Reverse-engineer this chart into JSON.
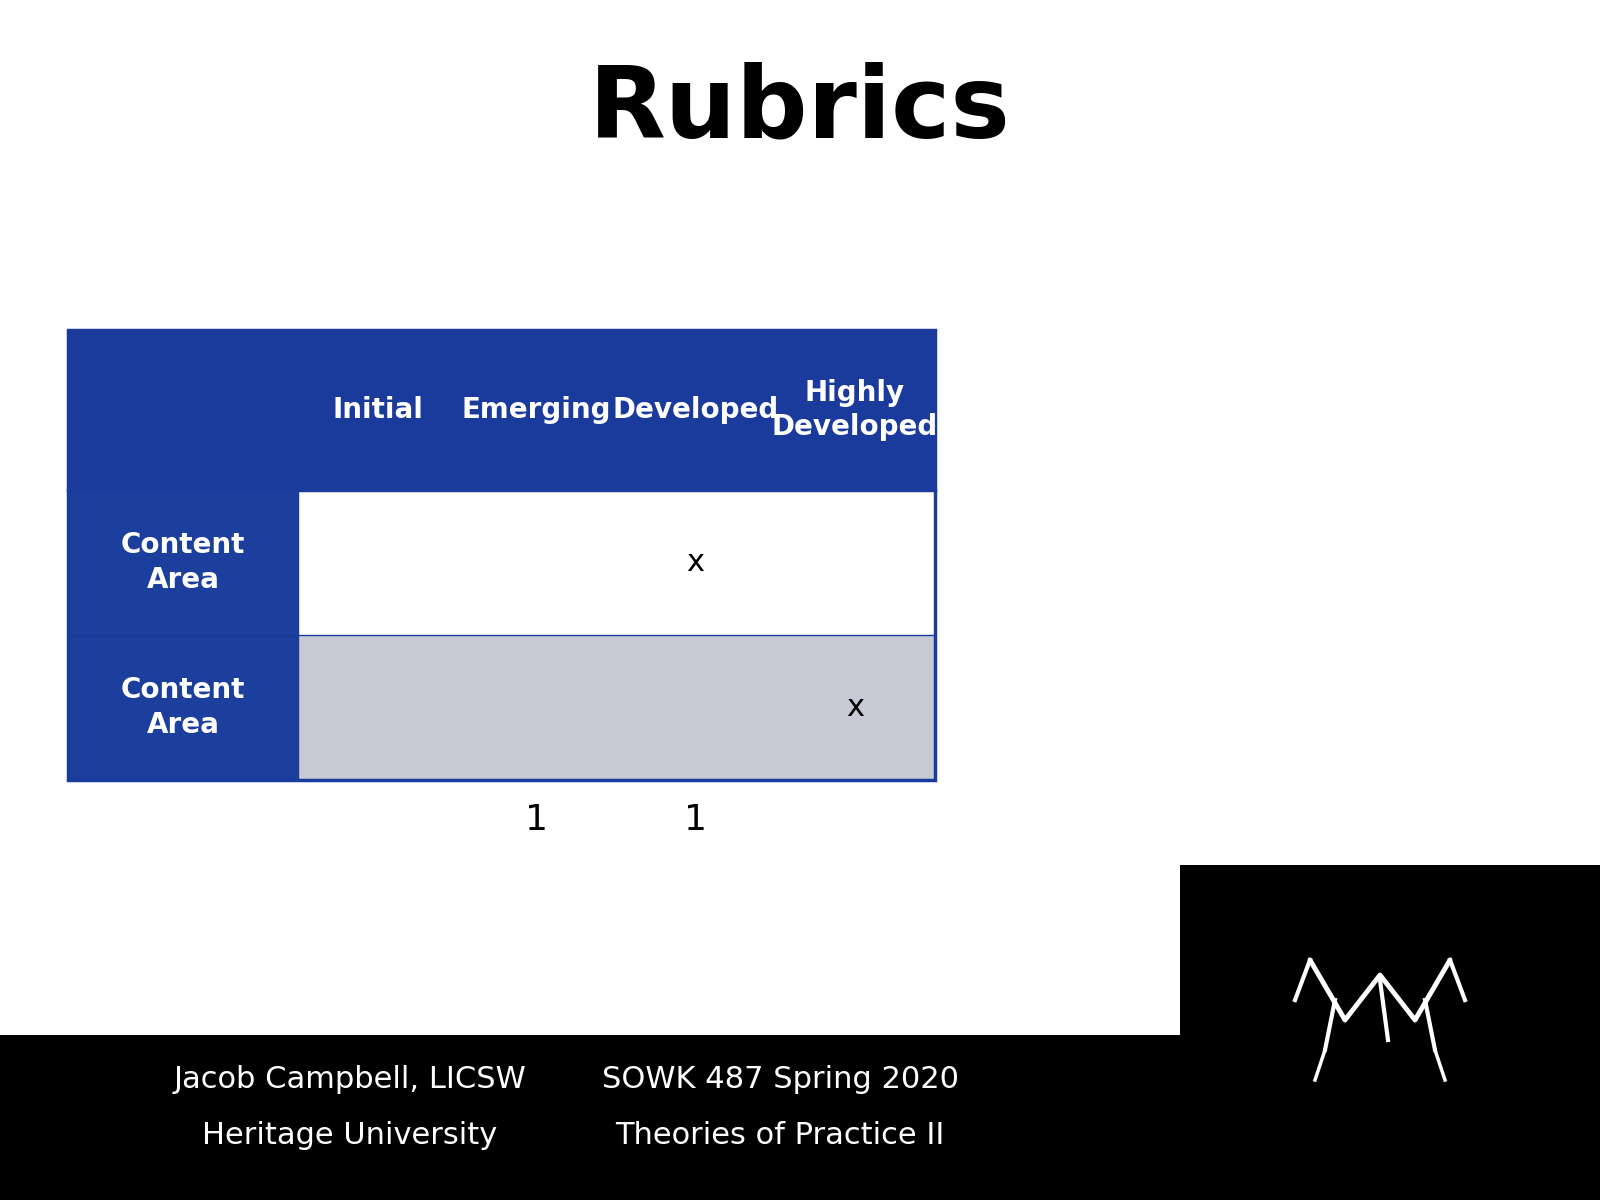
{
  "title": "Rubrics",
  "title_fontsize": 72,
  "title_fontweight": "bold",
  "bg_color": "#ffffff",
  "footer_bg_color": "#000000",
  "header_bg_color": "#1a3a9c",
  "row_label_bg_color": "#1c3f9e",
  "row1_bg_color": "#ffffff",
  "row2_bg_color": "#c5cad4",
  "header_text_color": "#ffffff",
  "row_label_text_color": "#ffffff",
  "data_text_color": "#000000",
  "border_color": "#1a3a9c",
  "columns": [
    "",
    "Initial",
    "Emerging",
    "Developed",
    "Highly\nDeveloped"
  ],
  "rows": [
    "Content\nArea",
    "Content\nArea"
  ],
  "marks": [
    [
      null,
      null,
      "x",
      null
    ],
    [
      null,
      null,
      null,
      "x"
    ]
  ],
  "col_scores": [
    null,
    null,
    "1",
    "1",
    null
  ],
  "footer_left1": "Jacob Campbell, LICSW",
  "footer_left2": "Heritage University",
  "footer_right1": "SOWK 487 Spring 2020",
  "footer_right2": "Theories of Practice II",
  "footer_fontsize": 22
}
